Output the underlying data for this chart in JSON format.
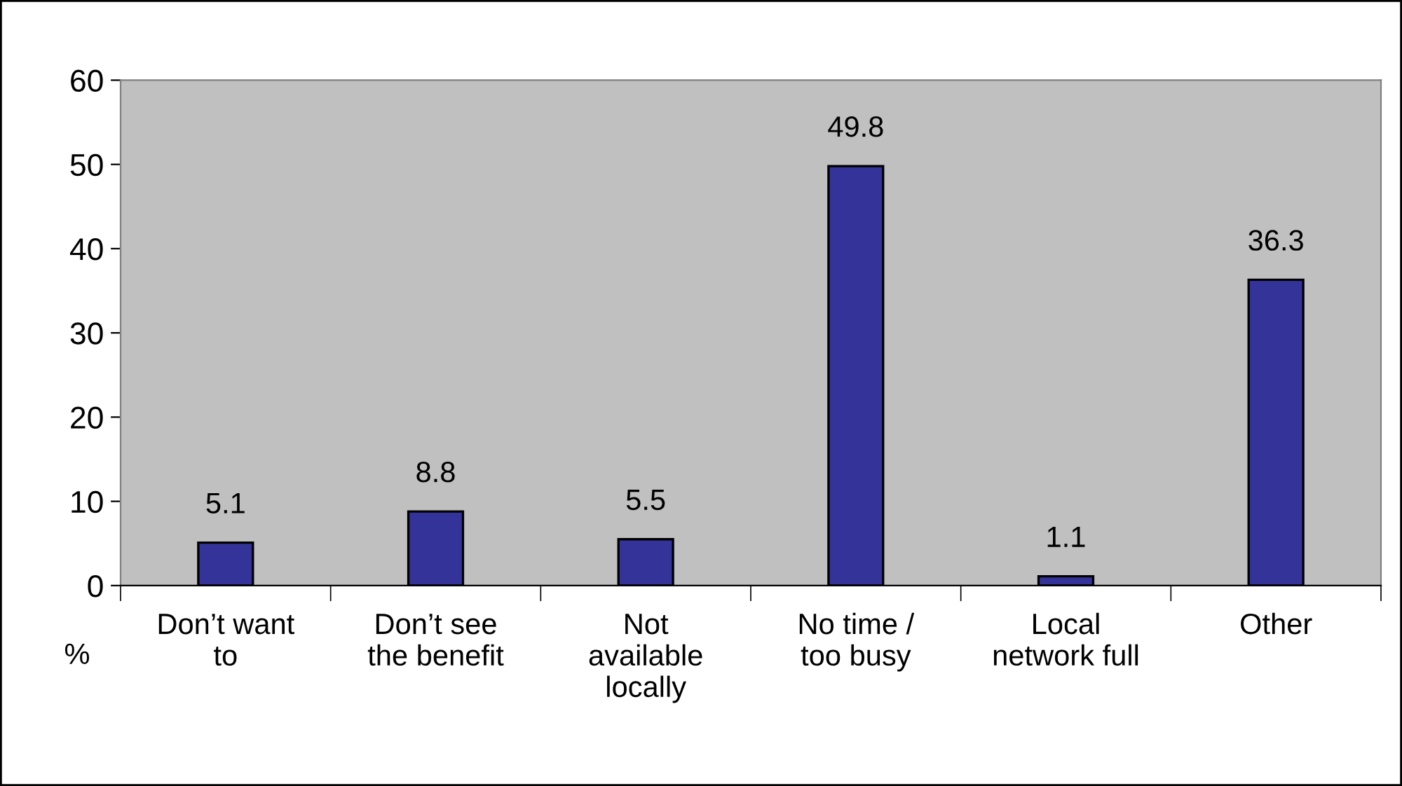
{
  "chart_data": {
    "type": "bar",
    "ylabel": "%",
    "categories": [
      "Don’t want\nto",
      "Don’t see\nthe benefit",
      "Not\navailable\nlocally",
      "No time /\ntoo busy",
      "Local\nnetwork full",
      "Other"
    ],
    "values": [
      5.1,
      8.8,
      5.5,
      49.8,
      1.1,
      36.3
    ],
    "color": "#333399",
    "ylim": [
      0,
      60
    ],
    "yticks": [
      0,
      10,
      20,
      30,
      40,
      50,
      60
    ],
    "grid": false,
    "data_labels": true
  }
}
